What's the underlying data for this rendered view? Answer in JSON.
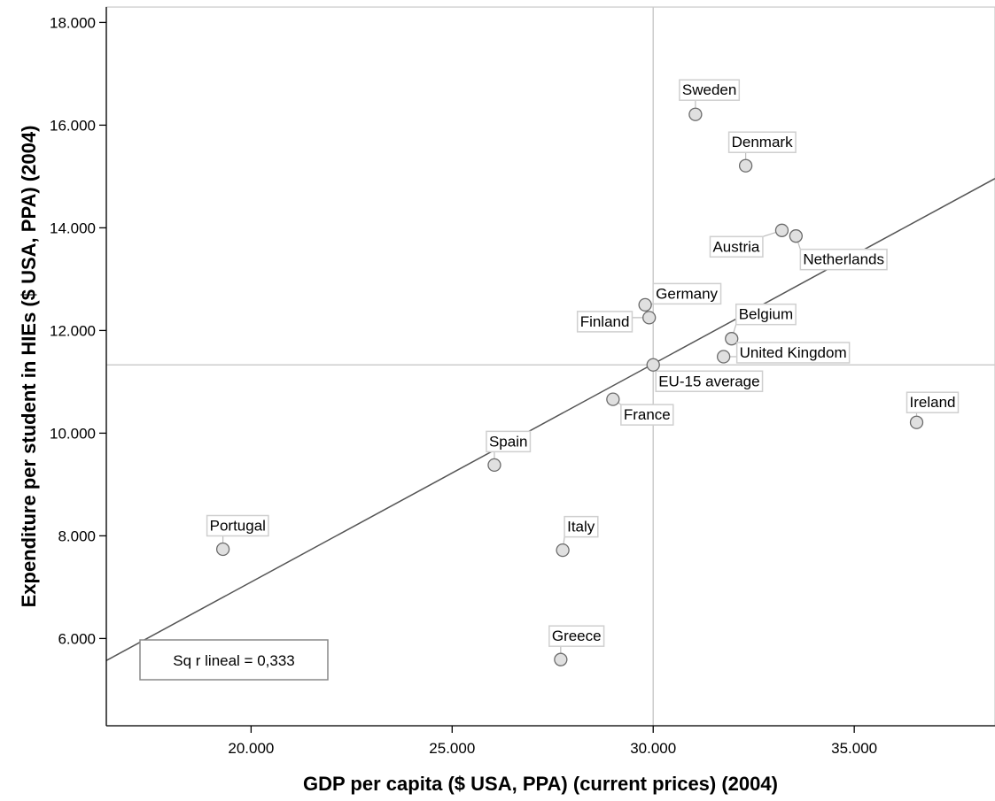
{
  "chart_data": {
    "type": "scatter",
    "xlabel": "GDP per capita ($ USA, PPA) (current prices) (2004)",
    "ylabel": "Expenditure per student in HIEs ($ USA, PPA) (2004)",
    "xlim": [
      16400,
      38500
    ],
    "ylim": [
      4300,
      18300
    ],
    "x_ticks": [
      20000,
      25000,
      30000,
      35000
    ],
    "x_tick_labels": [
      "20.000",
      "25.000",
      "30.000",
      "35.000"
    ],
    "y_ticks": [
      6000,
      8000,
      10000,
      12000,
      14000,
      16000,
      18000
    ],
    "y_tick_labels": [
      "6.000",
      "8.000",
      "10.000",
      "12.000",
      "14.000",
      "16.000",
      "18.000"
    ],
    "grid": false,
    "reference_lines": {
      "x": 30000,
      "y": 11330
    },
    "fit_line": {
      "x0": 16400,
      "y0": 5570,
      "x1": 38500,
      "y1": 14960
    },
    "r_squared_label": "Sq r lineal = 0,333",
    "points": [
      {
        "label": "Sweden",
        "x": 31050,
        "y": 16210
      },
      {
        "label": "Denmark",
        "x": 32300,
        "y": 15210
      },
      {
        "label": "Austria",
        "x": 33200,
        "y": 13950
      },
      {
        "label": "Netherlands",
        "x": 33550,
        "y": 13840
      },
      {
        "label": "Germany",
        "x": 29800,
        "y": 12500
      },
      {
        "label": "Finland",
        "x": 29900,
        "y": 12250
      },
      {
        "label": "Belgium",
        "x": 31950,
        "y": 11840
      },
      {
        "label": "United Kingdom",
        "x": 31750,
        "y": 11490
      },
      {
        "label": "EU-15 average",
        "x": 30000,
        "y": 11330
      },
      {
        "label": "France",
        "x": 29000,
        "y": 10660
      },
      {
        "label": "Ireland",
        "x": 36550,
        "y": 10210
      },
      {
        "label": "Spain",
        "x": 26050,
        "y": 9380
      },
      {
        "label": "Portugal",
        "x": 19300,
        "y": 7740
      },
      {
        "label": "Italy",
        "x": 27750,
        "y": 7720
      },
      {
        "label": "Greece",
        "x": 27700,
        "y": 5590
      }
    ]
  }
}
